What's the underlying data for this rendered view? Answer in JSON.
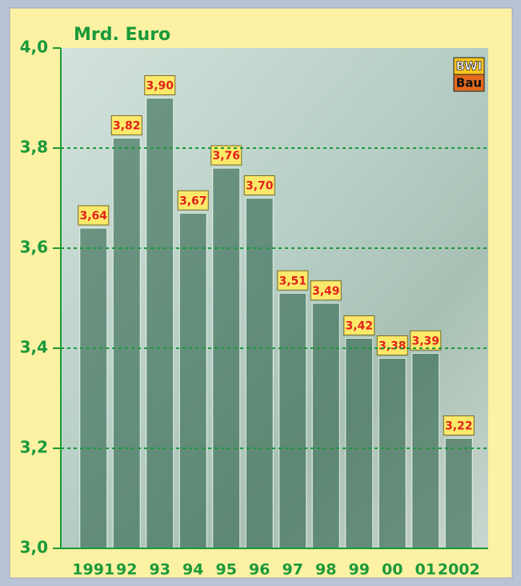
{
  "chart_data": {
    "type": "bar",
    "y_label": "Mrd. Euro",
    "logo": {
      "top": "BWI",
      "bottom": "Bau"
    },
    "categories": [
      "1991",
      "92",
      "93",
      "94",
      "95",
      "96",
      "97",
      "98",
      "99",
      "00",
      "01",
      "2002"
    ],
    "values": [
      3.64,
      3.82,
      3.9,
      3.67,
      3.76,
      3.7,
      3.51,
      3.49,
      3.42,
      3.38,
      3.39,
      3.22
    ],
    "value_labels": [
      "3,64",
      "3,82",
      "3,90",
      "3,67",
      "3,76",
      "3,70",
      "3,51",
      "3,49",
      "3,42",
      "3,38",
      "3,39",
      "3,22"
    ],
    "color": "#1f5a3e",
    "ylim": [
      3.0,
      4.0
    ],
    "yticks": [
      {
        "value": 3.0,
        "label": "3,0"
      },
      {
        "value": 3.2,
        "label": "3,2"
      },
      {
        "value": 3.4,
        "label": "3,4"
      },
      {
        "value": 3.6,
        "label": "3,6"
      },
      {
        "value": 3.8,
        "label": "3,8"
      },
      {
        "value": 4.0,
        "label": "4,0"
      }
    ],
    "grid": true
  }
}
